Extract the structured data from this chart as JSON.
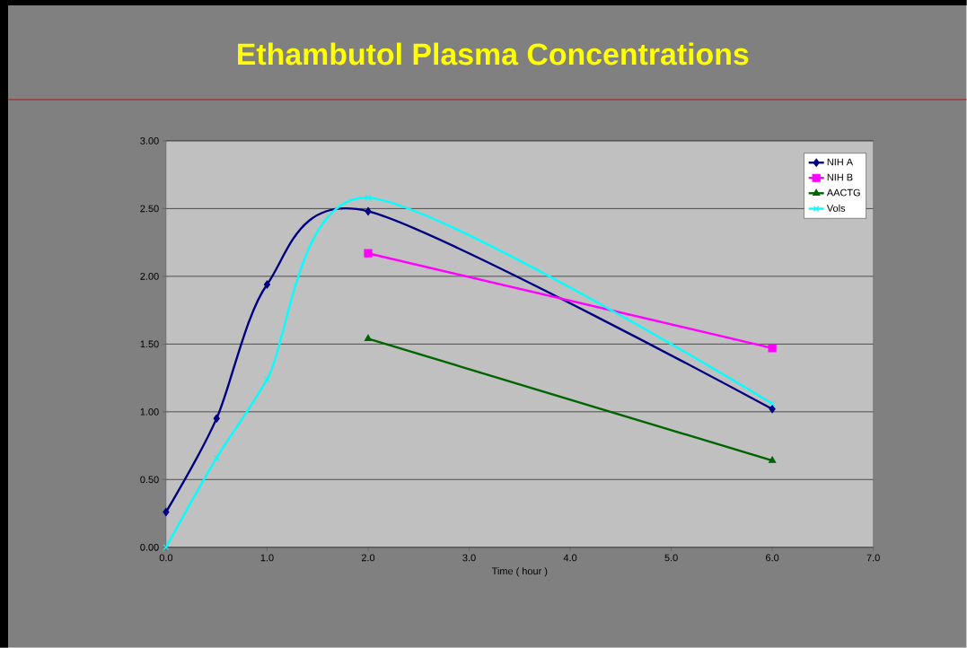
{
  "chart_data": {
    "type": "line",
    "title": "Ethambutol  Plasma  Concentrations",
    "xlabel": "Time  ( hour )",
    "series": [
      {
        "name": "NIH A",
        "color": "#000080",
        "marker": "diamond",
        "x": [
          0,
          0.5,
          1,
          2,
          6
        ],
        "values": [
          0.26,
          0.95,
          1.94,
          2.48,
          1.02
        ]
      },
      {
        "name": "NIH B",
        "color": "#ff00ff",
        "marker": "square",
        "x": [
          2,
          6
        ],
        "values": [
          2.17,
          1.47
        ]
      },
      {
        "name": "AACTG",
        "color": "#006400",
        "marker": "triangle",
        "x": [
          2,
          6
        ],
        "values": [
          1.54,
          0.64
        ]
      },
      {
        "name": "Vols",
        "color": "#00ffff",
        "marker": "cross",
        "x": [
          0,
          0.5,
          1,
          2,
          6
        ],
        "values": [
          0,
          0.66,
          1.24,
          2.58,
          1.06
        ]
      }
    ],
    "xlim": [
      0,
      7
    ],
    "ylim": [
      0,
      3
    ],
    "xticks": [
      {
        "value": 0,
        "label": "0.0"
      },
      {
        "value": 1,
        "label": "1.0"
      },
      {
        "value": 2,
        "label": "2.0"
      },
      {
        "value": 3,
        "label": "3.0"
      },
      {
        "value": 4,
        "label": "4.0"
      },
      {
        "value": 5,
        "label": "5.0"
      },
      {
        "value": 6,
        "label": "6.0"
      },
      {
        "value": 7,
        "label": "7.0"
      }
    ],
    "yticks": [
      {
        "value": 0,
        "label": "0.00"
      },
      {
        "value": 0.5,
        "label": "0.50"
      },
      {
        "value": 1,
        "label": "1.00"
      },
      {
        "value": 1.5,
        "label": "1.50"
      },
      {
        "value": 2,
        "label": "2.00"
      },
      {
        "value": 2.5,
        "label": "2.50"
      },
      {
        "value": 3,
        "label": "3.00"
      }
    ],
    "grid": "y",
    "legend": "top right"
  }
}
